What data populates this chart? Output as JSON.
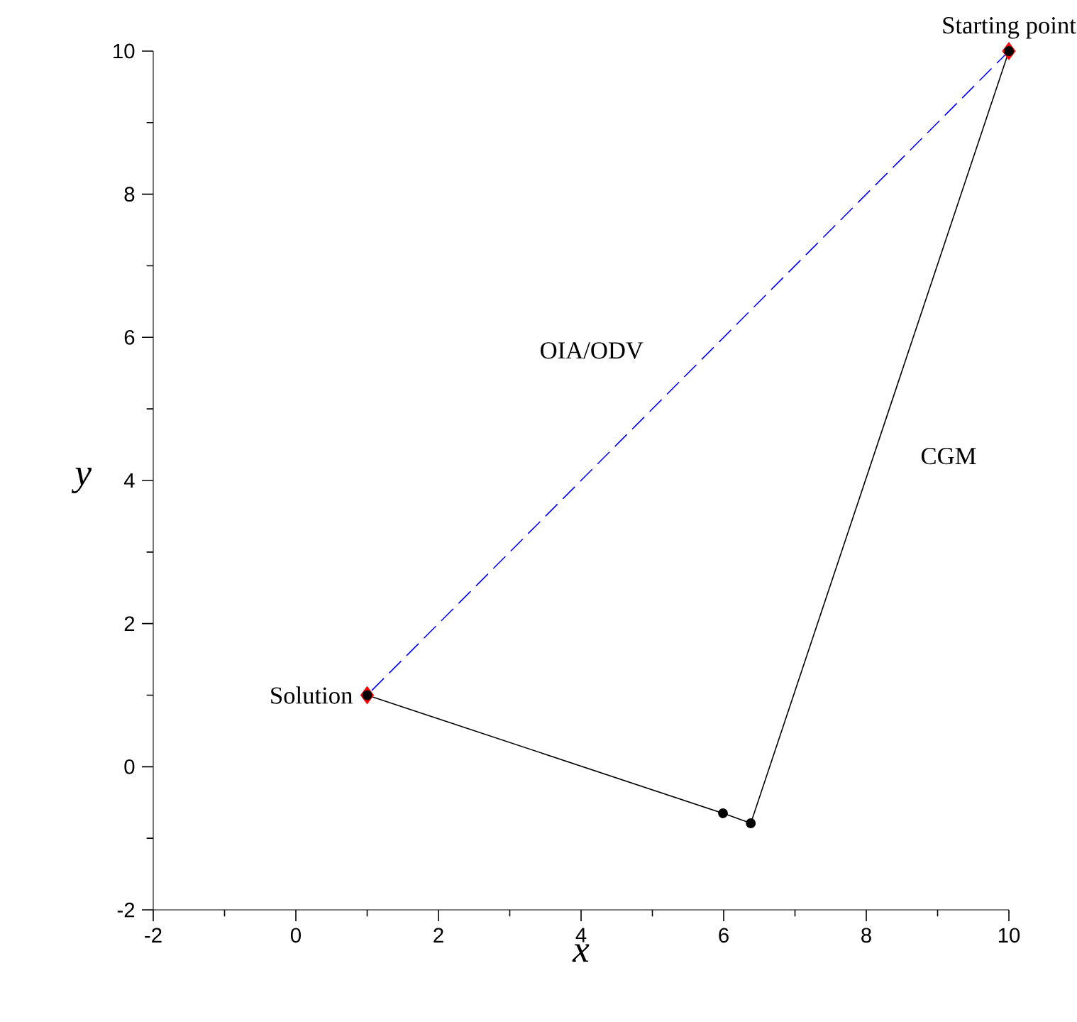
{
  "chart_data": {
    "type": "line",
    "xlabel": "x",
    "ylabel": "y",
    "xlim": [
      -2,
      10
    ],
    "ylim": [
      -2,
      10
    ],
    "xticks": [
      -2,
      {
        "value": -1,
        "label": null
      },
      0,
      {
        "value": 1,
        "label": null
      },
      2,
      {
        "value": 3,
        "label": null
      },
      4,
      {
        "value": 5,
        "label": null
      },
      6,
      {
        "value": 7,
        "label": null
      },
      8,
      {
        "value": 9,
        "label": null
      },
      10
    ],
    "yticks": [
      -2,
      {
        "value": -1,
        "label": null
      },
      0,
      {
        "value": 1,
        "label": null
      },
      2,
      {
        "value": 3,
        "label": null
      },
      4,
      {
        "value": 5,
        "label": null
      },
      6,
      {
        "value": 7,
        "label": null
      },
      8,
      {
        "value": 9,
        "label": null
      },
      10
    ],
    "grid": false,
    "legend": false,
    "series": [
      {
        "type": "scatter",
        "color": "#ff0000",
        "marker": "diamond",
        "x": [
          10,
          1
        ],
        "values": [
          10,
          1
        ]
      },
      {
        "name": "OIA/ODV",
        "color": "#0000ff",
        "line_style": "dashed",
        "marker": "none",
        "x": [
          10,
          1
        ],
        "values": [
          10,
          1
        ]
      },
      {
        "name": "CGM",
        "color": "#000000",
        "line_style": "solid",
        "marker": "circle",
        "x": [
          10,
          6.38,
          5.99,
          1
        ],
        "values": [
          10,
          -0.79,
          -0.65,
          1
        ]
      }
    ],
    "annotations": [
      {
        "text": "Starting point",
        "x": 10,
        "y": 10
      },
      {
        "text": "Solution",
        "x": 1,
        "y": 1
      }
    ]
  }
}
